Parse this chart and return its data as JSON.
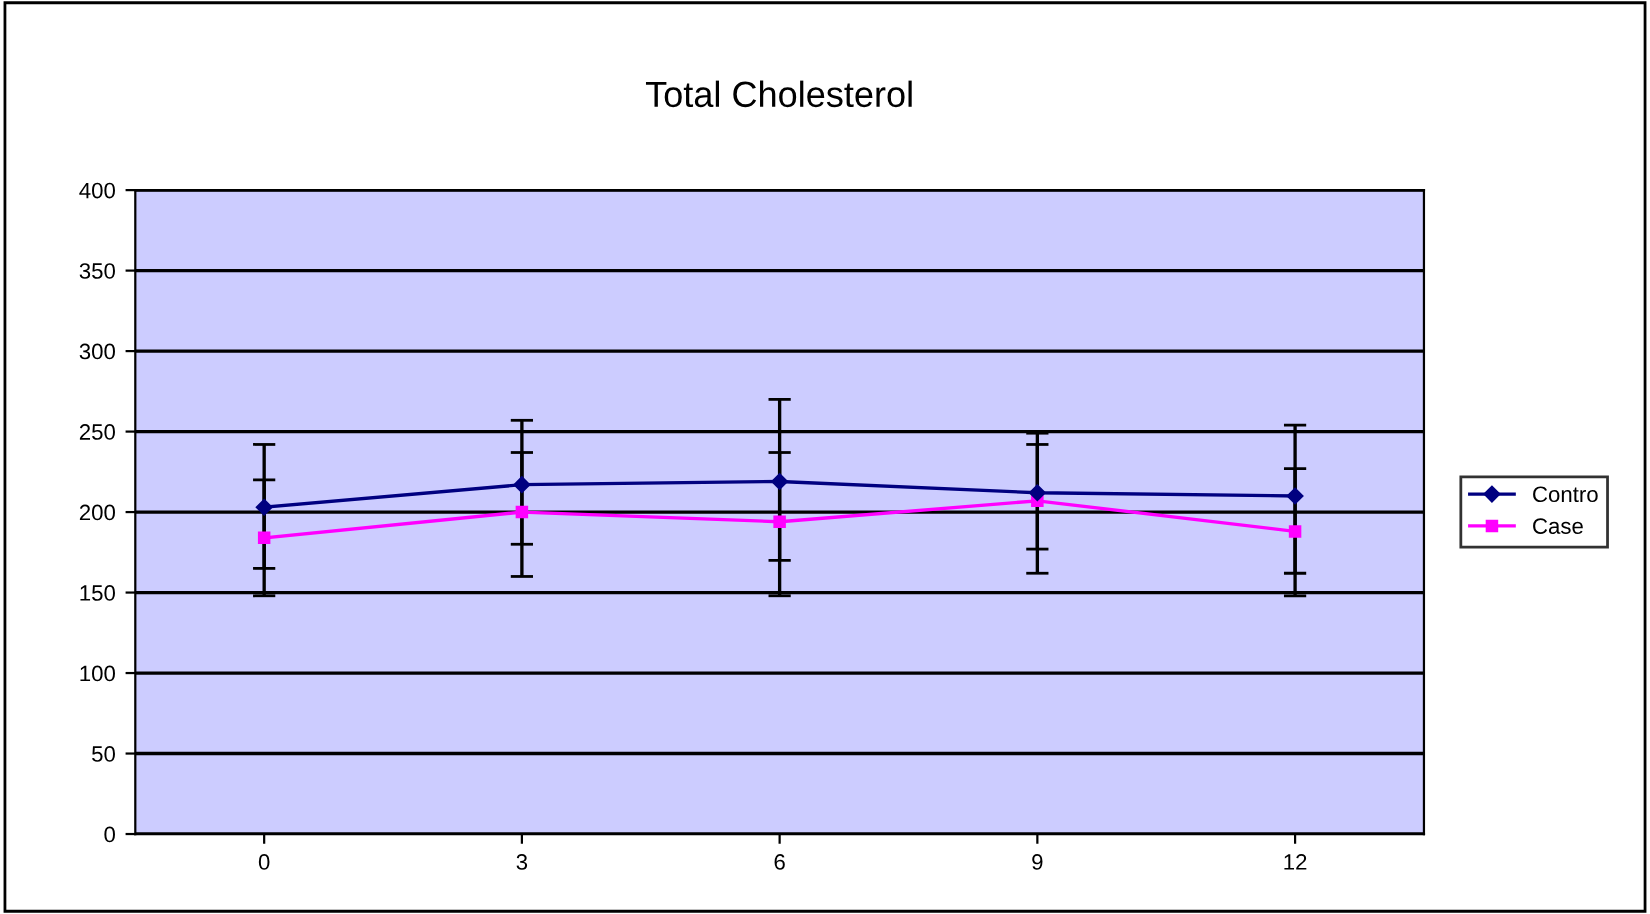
{
  "chart_data": {
    "type": "line",
    "title": "Total Cholesterol",
    "categories": [
      "0",
      "3",
      "6",
      "9",
      "12"
    ],
    "series": [
      {
        "name": "Contro",
        "color": "#000080",
        "marker": "diamond",
        "values": [
          203,
          217,
          219,
          212,
          210
        ],
        "errors": [
          [
            165,
            242
          ],
          [
            180,
            257
          ],
          [
            170,
            270
          ],
          [
            177,
            249
          ],
          [
            162,
            254
          ]
        ]
      },
      {
        "name": "Case",
        "color": "#ff00ff",
        "marker": "square",
        "values": [
          184,
          200,
          194,
          207,
          188
        ],
        "errors": [
          [
            148,
            220
          ],
          [
            160,
            237
          ],
          [
            148,
            237
          ],
          [
            162,
            242
          ],
          [
            148,
            227
          ]
        ]
      }
    ],
    "ylim": [
      0,
      400
    ],
    "yticks": [
      0,
      50,
      100,
      150,
      200,
      250,
      300,
      350,
      400
    ],
    "grid": "y",
    "legend": "right"
  }
}
